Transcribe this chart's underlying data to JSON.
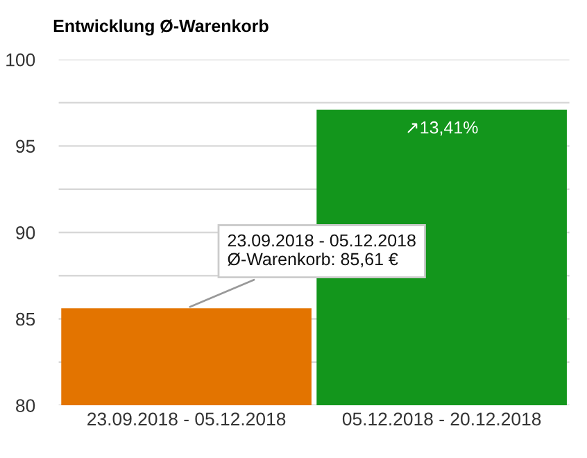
{
  "chart_data": {
    "type": "bar",
    "title": "Entwicklung Ø-Warenkorb",
    "categories": [
      "23.09.2018 - 05.12.2018",
      "05.12.2018 - 20.12.2018"
    ],
    "values": [
      85.61,
      97.1
    ],
    "colors": [
      "#e37400",
      "#13961c"
    ],
    "ylim": [
      80,
      100
    ],
    "yticks": [
      80,
      {
        "value": 82.5,
        "label": null
      },
      85,
      {
        "value": 87.5,
        "label": null
      },
      90,
      {
        "value": 92.5,
        "label": null
      },
      95,
      {
        "value": 97.5,
        "label": null
      },
      100
    ],
    "grid": "y",
    "annotations": [
      {
        "text": "23.09.2018 - 05.12.2018\nØ-Warenkorb: 85,61 €",
        "x": "23.09.2018 - 05.12.2018",
        "y": 85.61
      },
      {
        "text": "↗13,41%",
        "x": "05.12.2018 - 20.12.2018",
        "y": 97.1
      }
    ]
  }
}
